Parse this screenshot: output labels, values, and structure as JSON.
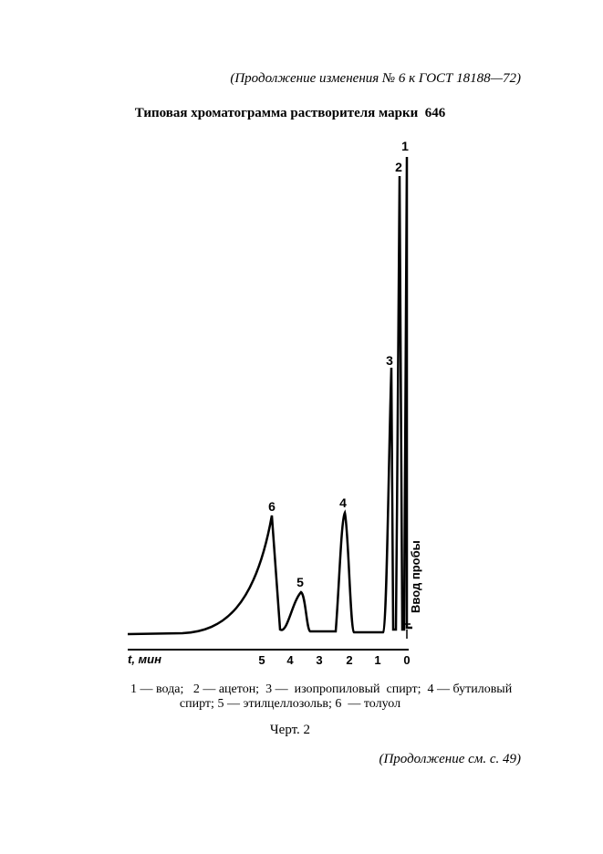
{
  "header": "(Продолжение изменения № 6 к ГОСТ 18188—72)",
  "title": "Типовая хроматограмма растворителя марки  646",
  "figure": {
    "peak_labels": [
      "1",
      "2",
      "3",
      "4",
      "5",
      "6"
    ],
    "axis_label": "t, мин",
    "axis_ticks": [
      "5",
      "4",
      "3",
      "2",
      "1",
      "0"
    ],
    "injection_label": "Ввод пробы"
  },
  "legend": [
    "1 — вода;   2 — ацетон;  3 —  изопропиловый  спирт;  4 — бутиловый",
    "спирт; 5 — этилцеллозольв; 6  — толуол"
  ],
  "caption": "Черт. 2",
  "footer": "(Продолжение см. с. 49)"
}
